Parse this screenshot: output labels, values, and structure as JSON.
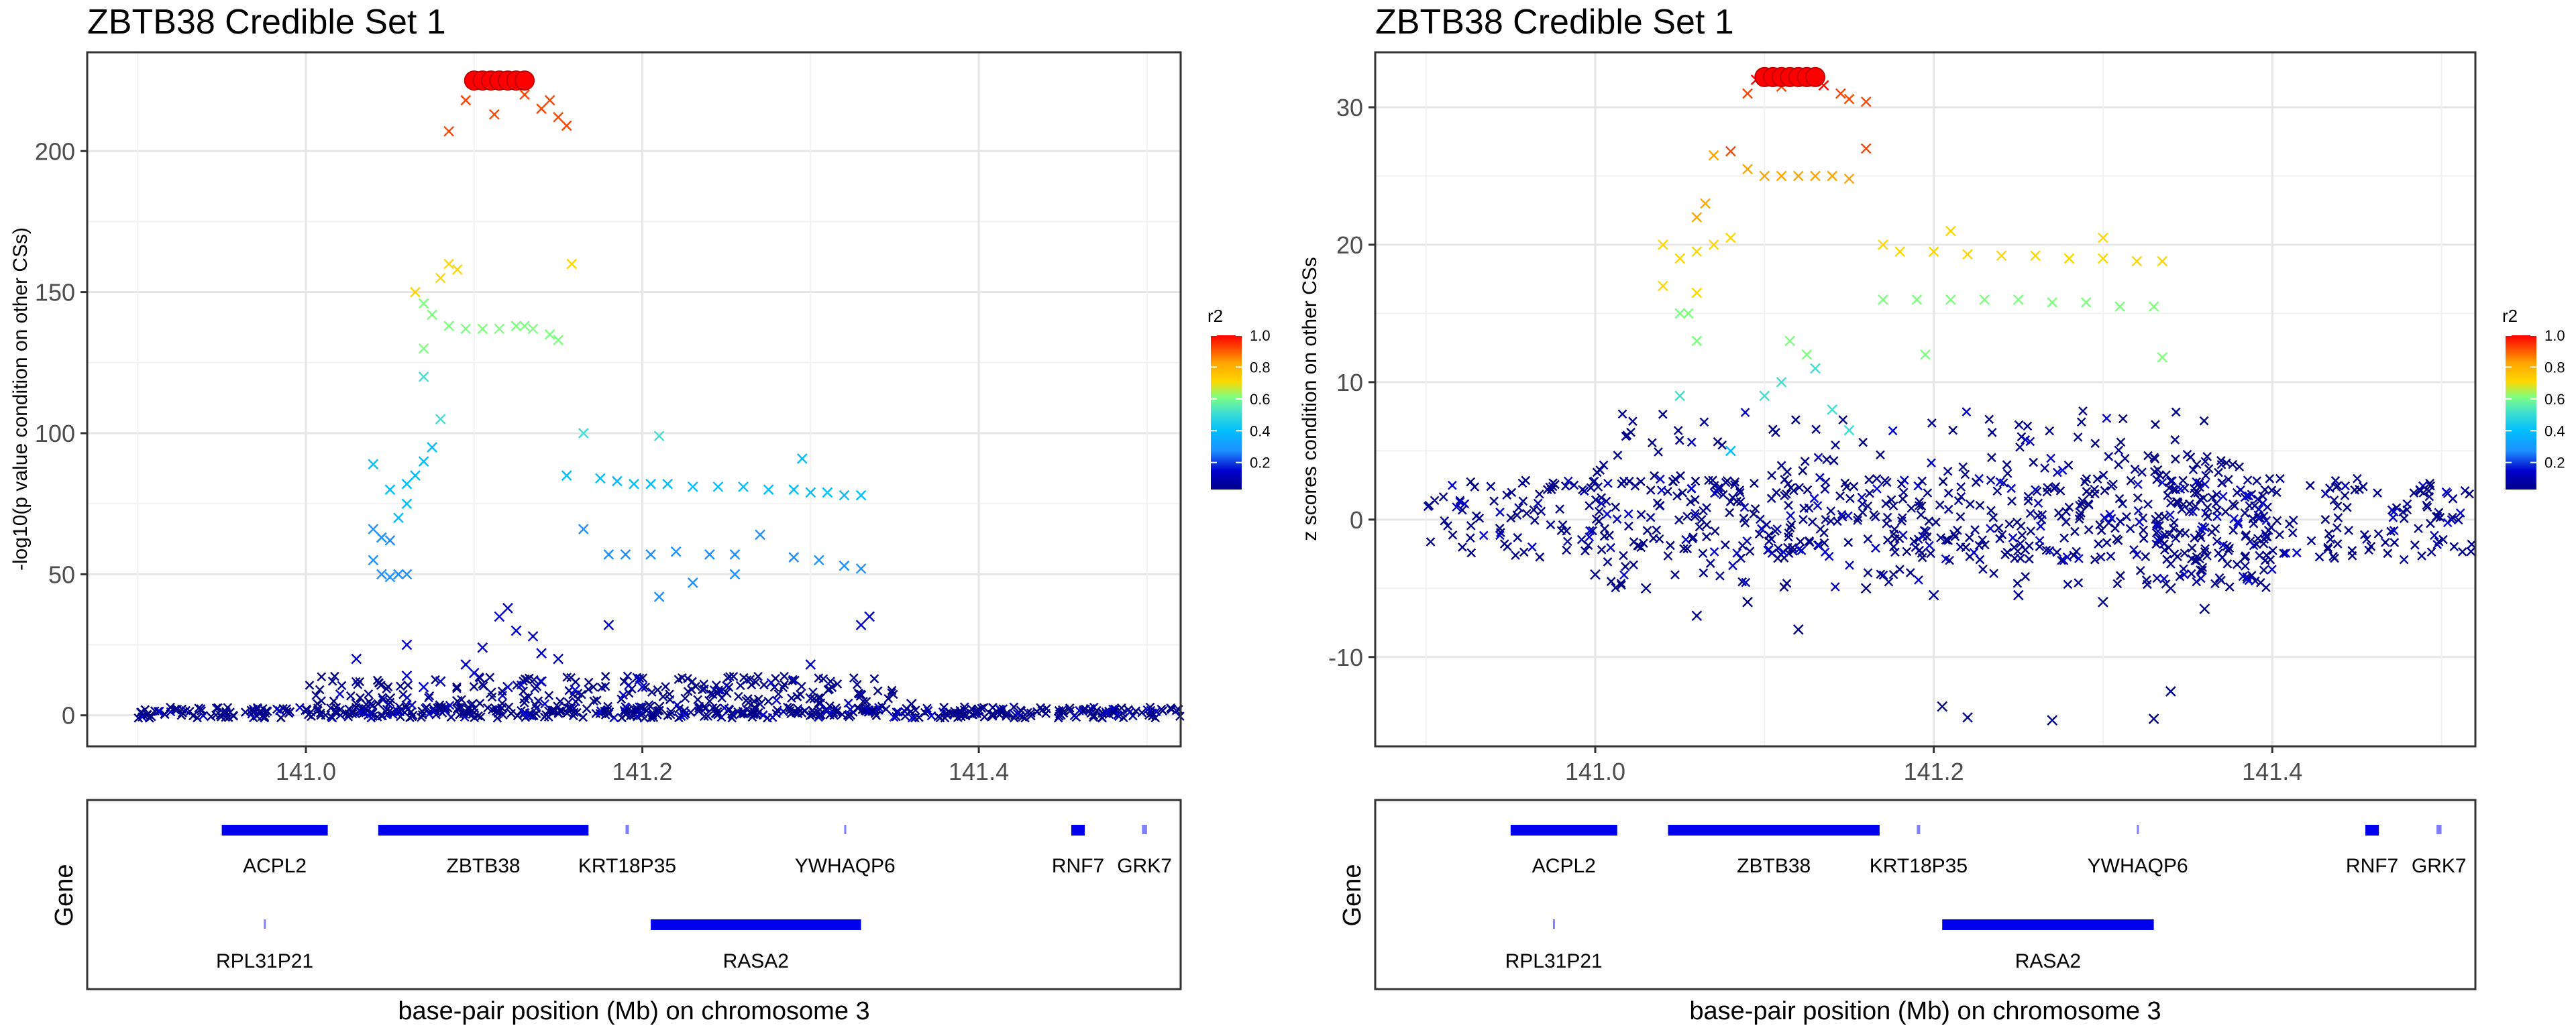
{
  "chart_data": [
    {
      "type": "scatter",
      "title": "ZBTB38 Credible Set 1",
      "ylabel": "-log10(p value condition on other CSs)",
      "xlabel": "base-pair position (Mb) on chromosome 3",
      "xlim": [
        140.87,
        141.52
      ],
      "ylim": [
        -11,
        235
      ],
      "x_ticks": [
        141.0,
        141.2,
        141.4
      ],
      "x_tick_labels": [
        "141.0",
        "141.2",
        "141.4"
      ],
      "y_ticks": [
        0,
        50,
        100,
        150,
        200
      ],
      "y_tick_labels": [
        "0",
        "50",
        "100",
        "150",
        "200"
      ],
      "grid": true,
      "legend": {
        "title": "r2",
        "ticks": [
          "1.0",
          "0.8",
          "0.6",
          "0.4",
          "0.2"
        ],
        "placement": "right"
      },
      "color_scale": [
        "#00008b",
        "#0000cd",
        "#1e90ff",
        "#00bfff",
        "#40e0d0",
        "#7fff7f",
        "#ffd700",
        "#ffa500",
        "#ff4500",
        "#ff0000"
      ],
      "series": [
        {
          "marker": "circle",
          "points": [
            [
              141.1,
              225
            ],
            [
              141.105,
              225
            ],
            [
              141.11,
              225
            ],
            [
              141.115,
              225
            ],
            [
              141.12,
              225
            ],
            [
              141.125,
              225
            ],
            [
              141.13,
              225
            ]
          ]
        },
        {
          "marker": "cross",
          "points": [
            [
              141.085,
              207
            ],
            [
              141.095,
              218
            ],
            [
              141.112,
              213
            ],
            [
              141.13,
              220
            ],
            [
              141.14,
              215
            ],
            [
              141.15,
              212
            ],
            [
              141.155,
              209
            ],
            [
              141.145,
              218
            ],
            [
              141.08,
              155
            ],
            [
              141.085,
              160
            ],
            [
              141.09,
              158
            ],
            [
              141.065,
              150
            ],
            [
              141.07,
              146
            ],
            [
              141.075,
              142
            ],
            [
              141.07,
              130
            ],
            [
              141.085,
              138
            ],
            [
              141.095,
              137
            ],
            [
              141.105,
              137
            ],
            [
              141.115,
              137
            ],
            [
              141.125,
              138
            ],
            [
              141.13,
              138
            ],
            [
              141.135,
              137
            ],
            [
              141.145,
              135
            ],
            [
              141.15,
              133
            ],
            [
              141.158,
              160
            ],
            [
              141.04,
              89
            ],
            [
              141.05,
              80
            ],
            [
              141.06,
              82
            ],
            [
              141.065,
              85
            ],
            [
              141.07,
              90
            ],
            [
              141.075,
              95
            ],
            [
              141.08,
              105
            ],
            [
              141.07,
              120
            ],
            [
              141.165,
              100
            ],
            [
              141.155,
              85
            ],
            [
              141.175,
              84
            ],
            [
              141.185,
              83
            ],
            [
              141.195,
              82
            ],
            [
              141.205,
              82
            ],
            [
              141.215,
              82
            ],
            [
              141.23,
              81
            ],
            [
              141.245,
              81
            ],
            [
              141.26,
              81
            ],
            [
              141.275,
              80
            ],
            [
              141.29,
              80
            ],
            [
              141.3,
              79
            ],
            [
              141.31,
              79
            ],
            [
              141.32,
              78
            ],
            [
              141.33,
              78
            ],
            [
              141.295,
              91
            ],
            [
              141.21,
              99
            ],
            [
              141.04,
              66
            ],
            [
              141.045,
              63
            ],
            [
              141.05,
              62
            ],
            [
              141.055,
              70
            ],
            [
              141.06,
              75
            ],
            [
              141.165,
              66
            ],
            [
              141.04,
              55
            ],
            [
              141.045,
              50
            ],
            [
              141.05,
              49
            ],
            [
              141.055,
              50
            ],
            [
              141.06,
              50
            ],
            [
              141.18,
              57
            ],
            [
              141.19,
              57
            ],
            [
              141.205,
              57
            ],
            [
              141.22,
              58
            ],
            [
              141.24,
              57
            ],
            [
              141.255,
              57
            ],
            [
              141.27,
              64
            ],
            [
              141.29,
              56
            ],
            [
              141.305,
              55
            ],
            [
              141.32,
              53
            ],
            [
              141.33,
              52
            ],
            [
              141.335,
              35
            ],
            [
              141.33,
              32
            ],
            [
              141.21,
              42
            ],
            [
              141.23,
              47
            ],
            [
              141.255,
              50
            ],
            [
              141.18,
              32
            ],
            [
              141.115,
              35
            ],
            [
              141.125,
              30
            ],
            [
              141.135,
              28
            ],
            [
              141.14,
              22
            ],
            [
              141.15,
              20
            ],
            [
              141.12,
              38
            ],
            [
              141.105,
              24
            ],
            [
              141.095,
              18
            ],
            [
              141.0,
              2
            ],
            [
              141.03,
              4
            ],
            [
              141.05,
              6
            ],
            [
              141.07,
              10
            ],
            [
              141.09,
              5
            ],
            [
              141.11,
              8
            ],
            [
              141.13,
              6
            ],
            [
              141.15,
              3
            ],
            [
              141.18,
              1
            ],
            [
              141.21,
              3
            ],
            [
              141.24,
              5
            ],
            [
              141.27,
              4
            ],
            [
              141.3,
              6
            ],
            [
              141.33,
              7
            ],
            [
              141.36,
              4
            ],
            [
              141.4,
              2
            ],
            [
              141.45,
              1
            ],
            [
              141.48,
              1
            ],
            [
              141.06,
              14
            ],
            [
              141.08,
              12
            ],
            [
              141.1,
              15
            ],
            [
              141.12,
              10
            ],
            [
              141.14,
              12
            ],
            [
              141.16,
              9
            ],
            [
              141.2,
              10
            ],
            [
              141.25,
              8
            ],
            [
              141.3,
              18
            ],
            [
              141.03,
              20
            ],
            [
              141.06,
              25
            ]
          ]
        }
      ],
      "dense_bands": [
        {
          "x_from": 140.9,
          "x_to": 141.52,
          "y_from": -1,
          "y_to": 3,
          "count": 460
        },
        {
          "x_from": 141.0,
          "x_to": 141.35,
          "y_from": 0,
          "y_to": 14,
          "count": 260
        }
      ]
    },
    {
      "type": "scatter",
      "title": "ZBTB38 Credible Set 1",
      "ylabel": "z scores condition on other CSs",
      "xlabel": "base-pair position (Mb) on chromosome 3",
      "xlim": [
        140.87,
        141.52
      ],
      "ylim": [
        -16.5,
        34
      ],
      "x_ticks": [
        141.0,
        141.2,
        141.4
      ],
      "x_tick_labels": [
        "141.0",
        "141.2",
        "141.4"
      ],
      "y_ticks": [
        -10,
        0,
        10,
        20,
        30
      ],
      "y_tick_labels": [
        "-10",
        "0",
        "10",
        "20",
        "30"
      ],
      "grid": true,
      "legend": {
        "title": "r2",
        "ticks": [
          "1.0",
          "0.8",
          "0.6",
          "0.4",
          "0.2"
        ],
        "placement": "right"
      },
      "color_scale": [
        "#00008b",
        "#0000cd",
        "#1e90ff",
        "#00bfff",
        "#40e0d0",
        "#7fff7f",
        "#ffd700",
        "#ffa500",
        "#ff4500",
        "#ff0000"
      ],
      "series": [
        {
          "marker": "circle",
          "points": [
            [
              141.1,
              32.2
            ],
            [
              141.105,
              32.2
            ],
            [
              141.11,
              32.2
            ],
            [
              141.115,
              32.2
            ],
            [
              141.12,
              32.2
            ],
            [
              141.125,
              32.2
            ],
            [
              141.13,
              32.2
            ]
          ]
        },
        {
          "marker": "cross",
          "points": [
            [
              141.09,
              31.0
            ],
            [
              141.095,
              32.0
            ],
            [
              141.11,
              31.5
            ],
            [
              141.135,
              31.6
            ],
            [
              141.145,
              31.0
            ],
            [
              141.15,
              30.6
            ],
            [
              141.16,
              30.4
            ],
            [
              141.07,
              26.5
            ],
            [
              141.08,
              26.8
            ],
            [
              141.09,
              25.5
            ],
            [
              141.1,
              25.0
            ],
            [
              141.11,
              25.0
            ],
            [
              141.12,
              25.0
            ],
            [
              141.13,
              25.0
            ],
            [
              141.14,
              25.0
            ],
            [
              141.15,
              24.8
            ],
            [
              141.16,
              27.0
            ],
            [
              141.065,
              23.0
            ],
            [
              141.04,
              20.0
            ],
            [
              141.05,
              19.0
            ],
            [
              141.06,
              19.5
            ],
            [
              141.07,
              20.0
            ],
            [
              141.08,
              20.5
            ],
            [
              141.06,
              22.0
            ],
            [
              141.17,
              20.0
            ],
            [
              141.18,
              19.5
            ],
            [
              141.2,
              19.5
            ],
            [
              141.22,
              19.3
            ],
            [
              141.24,
              19.2
            ],
            [
              141.26,
              19.2
            ],
            [
              141.28,
              19.0
            ],
            [
              141.3,
              19.0
            ],
            [
              141.32,
              18.8
            ],
            [
              141.335,
              18.8
            ],
            [
              141.21,
              21.0
            ],
            [
              141.3,
              20.5
            ],
            [
              141.04,
              17.0
            ],
            [
              141.05,
              15.0
            ],
            [
              141.055,
              15.0
            ],
            [
              141.06,
              16.5
            ],
            [
              141.17,
              16.0
            ],
            [
              141.19,
              16.0
            ],
            [
              141.21,
              16.0
            ],
            [
              141.23,
              16.0
            ],
            [
              141.25,
              16.0
            ],
            [
              141.27,
              15.8
            ],
            [
              141.29,
              15.8
            ],
            [
              141.31,
              15.5
            ],
            [
              141.33,
              15.5
            ],
            [
              141.335,
              11.8
            ],
            [
              141.205,
              -13.6
            ],
            [
              141.22,
              -14.4
            ],
            [
              141.27,
              -14.6
            ],
            [
              141.33,
              -14.5
            ],
            [
              141.34,
              -12.5
            ],
            [
              141.195,
              12.0
            ],
            [
              141.11,
              10.0
            ],
            [
              141.115,
              13.0
            ],
            [
              141.125,
              12.0
            ],
            [
              141.13,
              11.0
            ],
            [
              141.14,
              8.0
            ],
            [
              141.15,
              6.5
            ],
            [
              141.1,
              9.0
            ],
            [
              141.08,
              5.0
            ],
            [
              141.06,
              13.0
            ],
            [
              141.05,
              9.0
            ],
            [
              141.0,
              -4.0
            ],
            [
              141.03,
              -5.0
            ],
            [
              141.06,
              -7.0
            ],
            [
              141.09,
              -6.0
            ],
            [
              141.12,
              -8.0
            ],
            [
              141.16,
              -5.0
            ],
            [
              141.2,
              -5.5
            ],
            [
              141.25,
              -5.5
            ],
            [
              141.3,
              -6.0
            ],
            [
              141.34,
              -5.0
            ],
            [
              141.36,
              -6.5
            ]
          ]
        }
      ],
      "dense_bands": [
        {
          "x_from": 140.9,
          "x_to": 141.52,
          "y_from": -3,
          "y_to": 3,
          "count": 520
        },
        {
          "x_from": 141.0,
          "x_to": 141.36,
          "y_from": -5,
          "y_to": 8,
          "count": 240
        },
        {
          "x_from": 141.33,
          "x_to": 141.4,
          "y_from": -5,
          "y_to": 5,
          "count": 110
        }
      ]
    }
  ],
  "gene_panel": {
    "ylabel": "Gene",
    "xlabel": "base-pair position (Mb) on chromosome 3",
    "genes": [
      {
        "name": "ACPL2",
        "start": 140.95,
        "end": 141.013,
        "row": 1
      },
      {
        "name": "ZBTB38",
        "start": 141.043,
        "end": 141.168,
        "row": 1
      },
      {
        "name": "KRT18P35",
        "start": 141.19,
        "end": 141.192,
        "row": 1
      },
      {
        "name": "YWHAQP6",
        "start": 141.32,
        "end": 141.321,
        "row": 1
      },
      {
        "name": "RNF7",
        "start": 141.455,
        "end": 141.463,
        "row": 1
      },
      {
        "name": "GRK7",
        "start": 141.497,
        "end": 141.5,
        "row": 1
      },
      {
        "name": "RPL31P21",
        "start": 140.975,
        "end": 140.976,
        "row": 2
      },
      {
        "name": "RASA2",
        "start": 141.205,
        "end": 141.33,
        "row": 2
      }
    ]
  }
}
